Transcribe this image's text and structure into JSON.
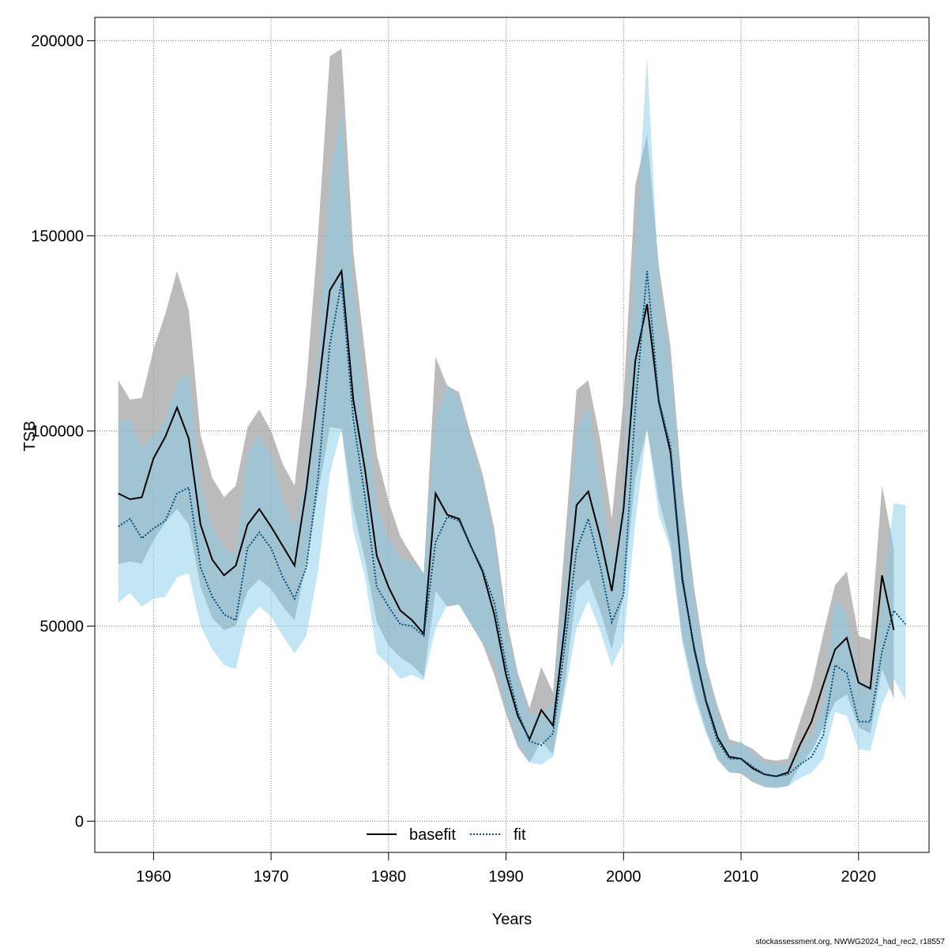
{
  "footer": "stockassessment.org, NWWG2024_had_rec2, r18557",
  "chart_data": {
    "type": "line",
    "xlabel": "Years",
    "ylabel": "TSB",
    "xlim": [
      1955,
      2026
    ],
    "ylim": [
      -8000,
      206000
    ],
    "xticks": [
      1960,
      1970,
      1980,
      1990,
      2000,
      2010,
      2020
    ],
    "yticks": [
      0,
      50000,
      100000,
      150000,
      200000
    ],
    "grid": true,
    "legend_position": "bottom-center",
    "colors": {
      "basefit_line": "#000000",
      "basefit_band": "#9e9e9e",
      "fit_line": "#00507a",
      "fit_band": "#87ceeb"
    },
    "series": [
      {
        "name": "basefit",
        "style": "solid",
        "x": [
          1957,
          1958,
          1959,
          1960,
          1961,
          1962,
          1963,
          1964,
          1965,
          1966,
          1967,
          1968,
          1969,
          1970,
          1971,
          1972,
          1973,
          1974,
          1975,
          1976,
          1977,
          1978,
          1979,
          1980,
          1981,
          1982,
          1983,
          1984,
          1985,
          1986,
          1987,
          1988,
          1989,
          1990,
          1991,
          1992,
          1993,
          1994,
          1995,
          1996,
          1997,
          1998,
          1999,
          2000,
          2001,
          2002,
          2003,
          2004,
          2005,
          2006,
          2007,
          2008,
          2009,
          2010,
          2011,
          2012,
          2013,
          2014,
          2015,
          2016,
          2017,
          2018,
          2019,
          2020,
          2021,
          2022,
          2023
        ],
        "y": [
          84000,
          82500,
          83000,
          93000,
          98500,
          106000,
          98000,
          76000,
          67000,
          63000,
          65500,
          76000,
          80000,
          75500,
          70500,
          65500,
          85000,
          110000,
          136000,
          141000,
          108000,
          90000,
          68000,
          60000,
          54000,
          51500,
          48000,
          84000,
          78500,
          77500,
          70500,
          64000,
          53000,
          37500,
          27000,
          21000,
          28500,
          24500,
          50000,
          81000,
          84500,
          73000,
          59000,
          80000,
          118000,
          132500,
          107500,
          94500,
          62000,
          44500,
          31000,
          21500,
          16500,
          16000,
          13500,
          12000,
          11500,
          12500,
          19500,
          25500,
          35000,
          44000,
          47000,
          35500,
          34000,
          63000,
          49000
        ],
        "lower": [
          66000,
          66500,
          66000,
          72000,
          76500,
          80000,
          76000,
          60000,
          52000,
          49000,
          50000,
          59000,
          62000,
          59500,
          55000,
          51500,
          66000,
          84000,
          101000,
          100500,
          80000,
          67000,
          51000,
          45000,
          42000,
          40000,
          37000,
          59000,
          55000,
          55500,
          50500,
          45500,
          37500,
          27500,
          19000,
          15000,
          20500,
          17000,
          35000,
          59000,
          62000,
          54000,
          44000,
          58000,
          88000,
          100500,
          82500,
          71000,
          47000,
          33500,
          23500,
          16000,
          12500,
          12200,
          10000,
          8800,
          8500,
          9000,
          14000,
          18000,
          24000,
          30500,
          32500,
          24000,
          22500,
          39000,
          31500
        ],
        "upper": [
          113000,
          108000,
          108500,
          121000,
          130000,
          141000,
          131000,
          99000,
          88000,
          83000,
          86000,
          101000,
          105500,
          100000,
          91500,
          86000,
          112000,
          150000,
          196000,
          198000,
          146000,
          120000,
          94000,
          82000,
          73000,
          68000,
          63500,
          119000,
          111500,
          110000,
          99000,
          89000,
          75000,
          52500,
          38000,
          29000,
          39500,
          33000,
          71500,
          110500,
          113000,
          98000,
          77500,
          108000,
          163000,
          176000,
          142500,
          121500,
          85000,
          60000,
          40500,
          29500,
          21000,
          20000,
          18500,
          16000,
          15500,
          16000,
          25500,
          34500,
          48000,
          60500,
          64000,
          47500,
          46500,
          86000,
          70000
        ]
      },
      {
        "name": "fit",
        "style": "dotted",
        "x": [
          1957,
          1958,
          1959,
          1960,
          1961,
          1962,
          1963,
          1964,
          1965,
          1966,
          1967,
          1968,
          1969,
          1970,
          1971,
          1972,
          1973,
          1974,
          1975,
          1976,
          1977,
          1978,
          1979,
          1980,
          1981,
          1982,
          1983,
          1984,
          1985,
          1986,
          1987,
          1988,
          1989,
          1990,
          1991,
          1992,
          1993,
          1994,
          1995,
          1996,
          1997,
          1998,
          1999,
          2000,
          2001,
          2002,
          2003,
          2004,
          2005,
          2006,
          2007,
          2008,
          2009,
          2010,
          2011,
          2012,
          2013,
          2014,
          2015,
          2016,
          2017,
          2018,
          2019,
          2020,
          2021,
          2022,
          2023,
          2024
        ],
        "y": [
          75500,
          77500,
          72500,
          75000,
          77000,
          84000,
          85500,
          65000,
          57500,
          53000,
          51500,
          70000,
          74000,
          70000,
          62500,
          57000,
          65000,
          88000,
          122000,
          138000,
          103000,
          83000,
          60000,
          55000,
          50500,
          50000,
          47500,
          71500,
          78000,
          77000,
          70500,
          64500,
          56000,
          40000,
          28000,
          20500,
          19500,
          22500,
          45000,
          69500,
          77500,
          65500,
          51000,
          58000,
          106000,
          141000,
          108000,
          96000,
          63000,
          44000,
          30500,
          20500,
          16000,
          16000,
          14000,
          12000,
          11500,
          12000,
          14500,
          16500,
          22000,
          40000,
          38000,
          25500,
          25500,
          43500,
          54000,
          50500
        ],
        "lower": [
          56000,
          58500,
          55000,
          57000,
          57500,
          62500,
          63500,
          50000,
          44000,
          40000,
          39000,
          51500,
          55000,
          52500,
          47500,
          43000,
          47500,
          64000,
          89000,
          100500,
          74500,
          62500,
          43000,
          40000,
          36500,
          37500,
          36000,
          49500,
          55500,
          55500,
          50500,
          46000,
          41000,
          29000,
          20000,
          15000,
          14500,
          16500,
          32500,
          49500,
          56500,
          49000,
          39500,
          46000,
          76500,
          101000,
          78500,
          69500,
          45500,
          32000,
          22500,
          15500,
          12500,
          12500,
          10500,
          8700,
          8500,
          9000,
          11000,
          12500,
          16000,
          28000,
          27000,
          18500,
          18000,
          30000,
          36500,
          31000
        ],
        "upper": [
          102500,
          103000,
          95500,
          99000,
          102500,
          112500,
          115000,
          85500,
          75500,
          70000,
          68500,
          94500,
          99000,
          93500,
          82500,
          75500,
          88000,
          120000,
          165000,
          182000,
          137000,
          108500,
          80500,
          72500,
          67500,
          66500,
          63500,
          103000,
          112000,
          108500,
          97000,
          87000,
          72500,
          50000,
          37000,
          27500,
          27000,
          30500,
          61500,
          100000,
          106500,
          87500,
          67500,
          85500,
          146500,
          196000,
          137500,
          117000,
          82500,
          57000,
          39000,
          28000,
          19500,
          20500,
          17500,
          15000,
          14500,
          14500,
          18500,
          22500,
          30500,
          57500,
          53000,
          36000,
          35000,
          57500,
          81500,
          81000
        ]
      }
    ]
  }
}
